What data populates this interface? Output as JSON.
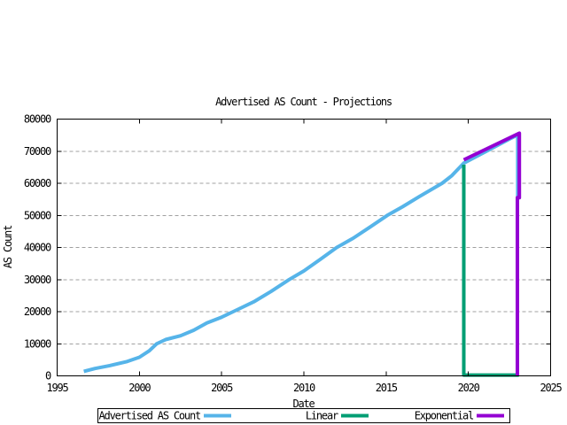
{
  "chart_data": {
    "type": "line",
    "title": "Advertised AS Count - Projections",
    "xlabel": "Date",
    "ylabel": "AS Count",
    "xlim": [
      1995,
      2025
    ],
    "ylim": [
      0,
      80000
    ],
    "xticks": [
      1995,
      2000,
      2005,
      2010,
      2015,
      2020,
      2025
    ],
    "yticks": [
      0,
      10000,
      20000,
      30000,
      40000,
      50000,
      60000,
      70000,
      80000
    ],
    "grid": {
      "horizontal": true,
      "vertical": false,
      "style": "dashed",
      "color": "#a0a0a0"
    },
    "axis_color": "#000000",
    "background_color": "#ffffff",
    "legend": {
      "position": "below-plot",
      "border": true
    },
    "series": [
      {
        "name": "Advertised AS Count",
        "color": "#56b4e9",
        "points": [
          [
            1996.62,
            1400
          ],
          [
            1997.3,
            2300
          ],
          [
            1998.2,
            3200
          ],
          [
            1999.2,
            4400
          ],
          [
            2000.0,
            5800
          ],
          [
            2000.6,
            7800
          ],
          [
            2001.05,
            10000
          ],
          [
            2001.6,
            11300
          ],
          [
            2002.5,
            12500
          ],
          [
            2003.3,
            14200
          ],
          [
            2004.1,
            16500
          ],
          [
            2005.0,
            18300
          ],
          [
            2005.7,
            20000
          ],
          [
            2007.0,
            23200
          ],
          [
            2008.0,
            26300
          ],
          [
            2009.1,
            30000
          ],
          [
            2010.0,
            32700
          ],
          [
            2011.0,
            36300
          ],
          [
            2012.0,
            40000
          ],
          [
            2013.0,
            42900
          ],
          [
            2014.0,
            46300
          ],
          [
            2015.07,
            50000
          ],
          [
            2016.0,
            52700
          ],
          [
            2017.0,
            55800
          ],
          [
            2018.4,
            60000
          ],
          [
            2019.0,
            62400
          ],
          [
            2019.72,
            66300
          ],
          [
            2020.5,
            68400
          ],
          [
            2021.5,
            71100
          ],
          [
            2022.5,
            73800
          ],
          [
            2023.0,
            75100
          ],
          [
            2023.0,
            55500
          ]
        ]
      },
      {
        "name": "Linear",
        "color": "#009e73",
        "points": [
          [
            2019.72,
            65800
          ],
          [
            2019.72,
            250
          ],
          [
            2023.07,
            250
          ]
        ]
      },
      {
        "name": "Exponential",
        "color": "#9400d3",
        "points": [
          [
            2019.72,
            67300
          ],
          [
            2023.1,
            75600
          ],
          [
            2023.1,
            55500
          ],
          [
            2022.98,
            55500
          ],
          [
            2022.98,
            0
          ]
        ]
      }
    ]
  }
}
